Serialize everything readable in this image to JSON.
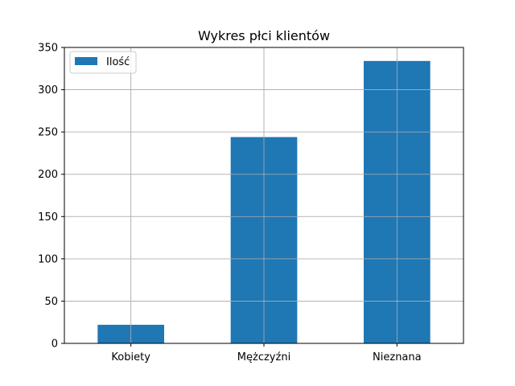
{
  "chart_data": {
    "type": "bar",
    "title": "Wykres płci klientów",
    "xlabel": "",
    "ylabel": "",
    "categories": [
      "Kobiety",
      "Mężczyźni",
      "Nieznana"
    ],
    "series": [
      {
        "name": "Ilość",
        "values": [
          22,
          244,
          334
        ],
        "color": "#1f77b4"
      }
    ],
    "ylim": [
      0,
      350
    ],
    "yticks": [
      0,
      50,
      100,
      150,
      200,
      250,
      300,
      350
    ],
    "ytick_labels": [
      "0",
      "50",
      "100",
      "150",
      "200",
      "250",
      "300",
      "350"
    ],
    "grid": true,
    "legend": "top-left"
  }
}
